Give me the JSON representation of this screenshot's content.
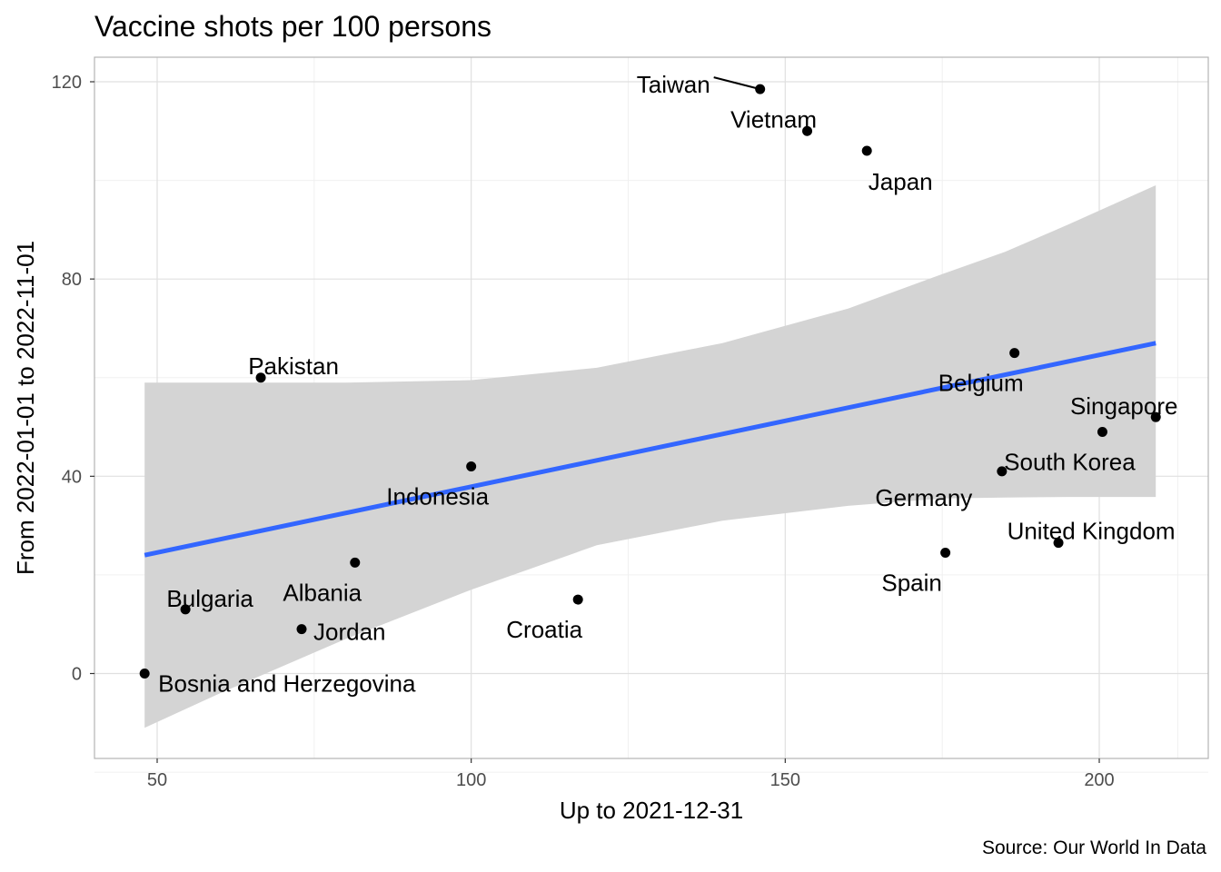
{
  "chart_data": {
    "type": "scatter",
    "title": "Vaccine shots per 100 persons",
    "xlabel": "Up to 2021-12-31",
    "ylabel": "From 2022-01-01 to 2022-11-01",
    "caption": "Source: Our World In Data",
    "xlim": [
      40,
      215
    ],
    "ylim": [
      -17,
      125
    ],
    "x_ticks": [
      50,
      100,
      150,
      200
    ],
    "y_ticks": [
      0,
      40,
      80,
      120
    ],
    "grid": true,
    "colors": {
      "point": "#000000",
      "trend_line": "#3366ff",
      "confidence_band": "#d4d4d4",
      "panel_border": "#b3b3b3",
      "grid_major": "#e0e0e0",
      "grid_minor": "#f0f0f0"
    },
    "points": [
      {
        "label": "Taiwan",
        "x": 146,
        "y": 118.5
      },
      {
        "label": "Vietnam",
        "x": 153.5,
        "y": 110
      },
      {
        "label": "Japan",
        "x": 163,
        "y": 106
      },
      {
        "label": "Pakistan",
        "x": 66.5,
        "y": 60
      },
      {
        "label": "Belgium",
        "x": 186.5,
        "y": 65
      },
      {
        "label": "Singapore",
        "x": 209,
        "y": 52
      },
      {
        "label": "South Korea",
        "x": 200.5,
        "y": 49
      },
      {
        "label": "Indonesia",
        "x": 100,
        "y": 42
      },
      {
        "label": "Germany",
        "x": 184.5,
        "y": 41
      },
      {
        "label": "United Kingdom",
        "x": 193.5,
        "y": 26.5
      },
      {
        "label": "Spain",
        "x": 175.5,
        "y": 24.5
      },
      {
        "label": "Albania",
        "x": 81.5,
        "y": 22.5
      },
      {
        "label": "Croatia",
        "x": 117,
        "y": 15
      },
      {
        "label": "Bulgaria",
        "x": 54.5,
        "y": 13
      },
      {
        "label": "Jordan",
        "x": 73,
        "y": 9
      },
      {
        "label": "Bosnia and Herzegovina",
        "x": 48,
        "y": 0
      }
    ],
    "trend_line": {
      "x": [
        48,
        209
      ],
      "y": [
        24,
        67
      ]
    },
    "confidence_band": {
      "x": [
        48,
        60,
        80,
        100,
        120,
        140,
        160,
        175,
        185,
        195,
        209
      ],
      "upper": [
        59,
        59,
        59,
        59.5,
        62,
        67,
        74,
        81,
        85.5,
        91,
        99
      ],
      "lower": [
        -11,
        -4,
        7,
        17,
        26,
        31,
        34,
        35.5,
        35.7,
        35.8,
        35.8
      ]
    }
  }
}
